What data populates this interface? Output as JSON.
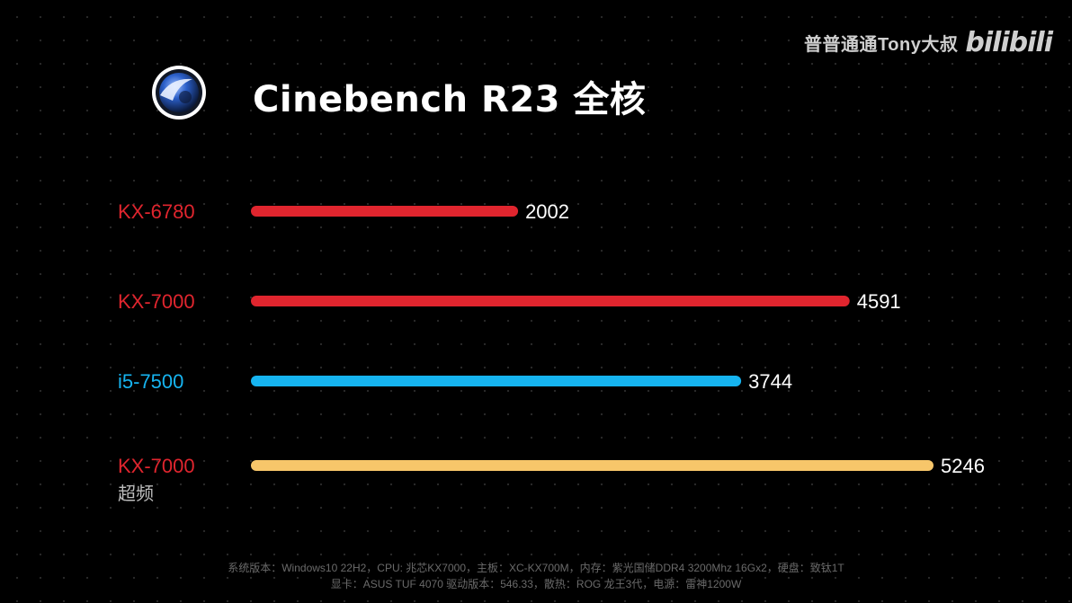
{
  "header": {
    "title": "Cinebench R23 全核",
    "app_icon": "cinema4d-logo-icon"
  },
  "watermark": {
    "text": "普普通通Tony大叔",
    "logo": "bilibili"
  },
  "chart_data": {
    "type": "bar",
    "orientation": "horizontal",
    "title": "Cinebench R23 全核",
    "xlabel": "",
    "ylabel": "",
    "grid": false,
    "categories": [
      {
        "label": "KX-6780",
        "sublabel": "",
        "value": 2002,
        "color": "#e0252e",
        "label_color": "#e0252e"
      },
      {
        "label": "KX-7000",
        "sublabel": "",
        "value": 4591,
        "color": "#e0252e",
        "label_color": "#e0252e"
      },
      {
        "label": "i5-7500",
        "sublabel": "",
        "value": 3744,
        "color": "#16b4f0",
        "label_color": "#16b4f0"
      },
      {
        "label": "KX-7000",
        "sublabel": "超频",
        "value": 5246,
        "color": "#f7c66a",
        "label_color": "#e0252e"
      }
    ],
    "values": [
      2002,
      4591,
      3744,
      5246
    ]
  },
  "footnote": {
    "line1": "系统版本：Windows10 22H2，CPU: 兆芯KX7000，主板：XC-KX700M，内存：紫光国储DDR4 3200Mhz 16Gx2，硬盘：致钛1T",
    "line2": "显卡：ASUS TUF 4070 驱动版本：546.33，散热：ROG 龙王3代，电源：雷神1200W"
  },
  "colors": {
    "background": "#000000",
    "red": "#e0252e",
    "blue": "#16b4f0",
    "gold": "#f7c66a",
    "sublabel": "#bdbdbd"
  }
}
